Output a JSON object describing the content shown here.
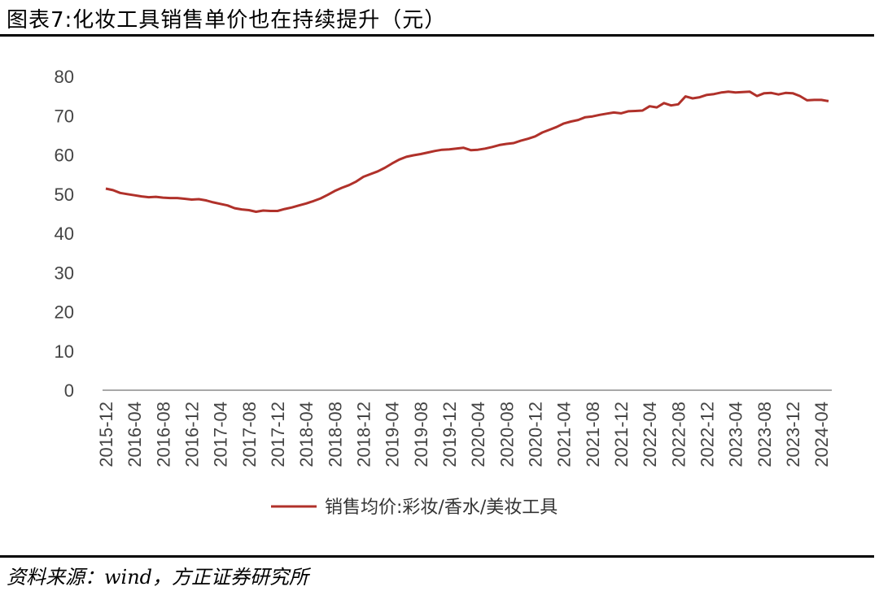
{
  "title": "图表7:化妆工具销售单价也在持续提升（元）",
  "source": "资料来源：wind，方正证券研究所",
  "chart_data": {
    "type": "line",
    "ylim": [
      0,
      80
    ],
    "yticks": [
      0,
      10,
      20,
      30,
      40,
      50,
      60,
      70,
      80
    ],
    "xtick_labels": [
      "2015-12",
      "2016-04",
      "2016-08",
      "2016-12",
      "2017-04",
      "2017-08",
      "2017-12",
      "2018-04",
      "2018-08",
      "2018-12",
      "2019-04",
      "2019-08",
      "2019-12",
      "2020-04",
      "2020-08",
      "2020-12",
      "2021-04",
      "2021-08",
      "2021-12",
      "2022-04",
      "2022-08",
      "2022-12",
      "2023-04",
      "2023-08",
      "2023-12",
      "2024-04"
    ],
    "legend_position": "bottom-center",
    "grid": false,
    "series": [
      {
        "name": "销售均价:彩妆/香水/美妆工具",
        "color": "#B0312A",
        "start": "2015-12",
        "values": [
          51.4,
          51.0,
          50.3,
          50.0,
          49.7,
          49.4,
          49.2,
          49.3,
          49.1,
          49.0,
          49.0,
          48.8,
          48.6,
          48.7,
          48.4,
          47.9,
          47.5,
          47.1,
          46.4,
          46.1,
          45.9,
          45.5,
          45.8,
          45.7,
          45.7,
          46.2,
          46.6,
          47.1,
          47.6,
          48.2,
          48.9,
          49.8,
          50.8,
          51.6,
          52.3,
          53.2,
          54.4,
          55.1,
          55.8,
          56.7,
          57.8,
          58.8,
          59.5,
          59.9,
          60.2,
          60.6,
          61.0,
          61.3,
          61.4,
          61.6,
          61.8,
          61.2,
          61.3,
          61.6,
          62.0,
          62.5,
          62.8,
          63.0,
          63.6,
          64.1,
          64.7,
          65.7,
          66.4,
          67.1,
          68.0,
          68.5,
          68.9,
          69.6,
          69.8,
          70.2,
          70.5,
          70.8,
          70.6,
          71.1,
          71.2,
          71.3,
          72.4,
          72.1,
          73.2,
          72.6,
          72.9,
          74.9,
          74.4,
          74.7,
          75.3,
          75.5,
          75.9,
          76.1,
          75.9,
          76.0,
          76.1,
          75.0,
          75.7,
          75.8,
          75.4,
          75.8,
          75.7,
          75.0,
          73.9,
          74.0,
          74.0,
          73.7
        ]
      }
    ]
  }
}
